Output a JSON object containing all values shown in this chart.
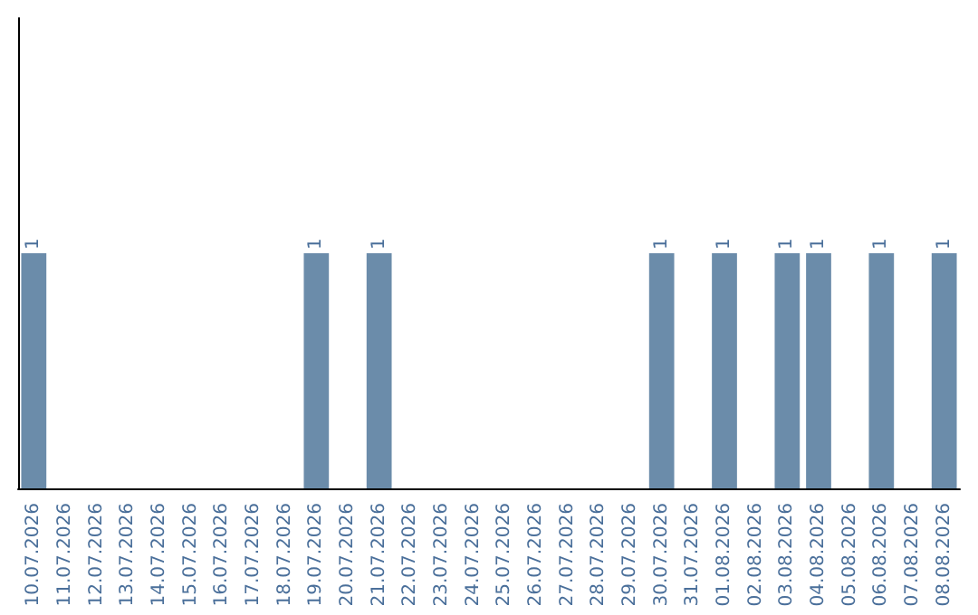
{
  "chart_data": {
    "type": "bar",
    "categories": [
      "10.07.2026",
      "11.07.2026",
      "12.07.2026",
      "13.07.2026",
      "14.07.2026",
      "15.07.2026",
      "16.07.2026",
      "17.07.2026",
      "18.07.2026",
      "19.07.2026",
      "20.07.2026",
      "21.07.2026",
      "22.07.2026",
      "23.07.2026",
      "24.07.2026",
      "25.07.2026",
      "26.07.2026",
      "27.07.2026",
      "28.07.2026",
      "29.07.2026",
      "30.07.2026",
      "31.07.2026",
      "01.08.2026",
      "02.08.2026",
      "03.08.2026",
      "04.08.2026",
      "05.08.2026",
      "06.08.2026",
      "07.08.2026",
      "08.08.2026"
    ],
    "values": [
      1,
      0,
      0,
      0,
      0,
      0,
      0,
      0,
      0,
      1,
      0,
      1,
      0,
      0,
      0,
      0,
      0,
      0,
      0,
      0,
      1,
      0,
      1,
      0,
      1,
      1,
      0,
      1,
      0,
      1
    ],
    "value_labels": [
      "1",
      null,
      null,
      null,
      null,
      null,
      null,
      null,
      null,
      "1",
      null,
      "1",
      null,
      null,
      null,
      null,
      null,
      null,
      null,
      null,
      "1",
      null,
      "1",
      null,
      "1",
      "1",
      null,
      "1",
      null,
      "1"
    ],
    "color": "#6b8caa",
    "ylim": [
      0,
      2
    ],
    "tick_labels": "x"
  }
}
